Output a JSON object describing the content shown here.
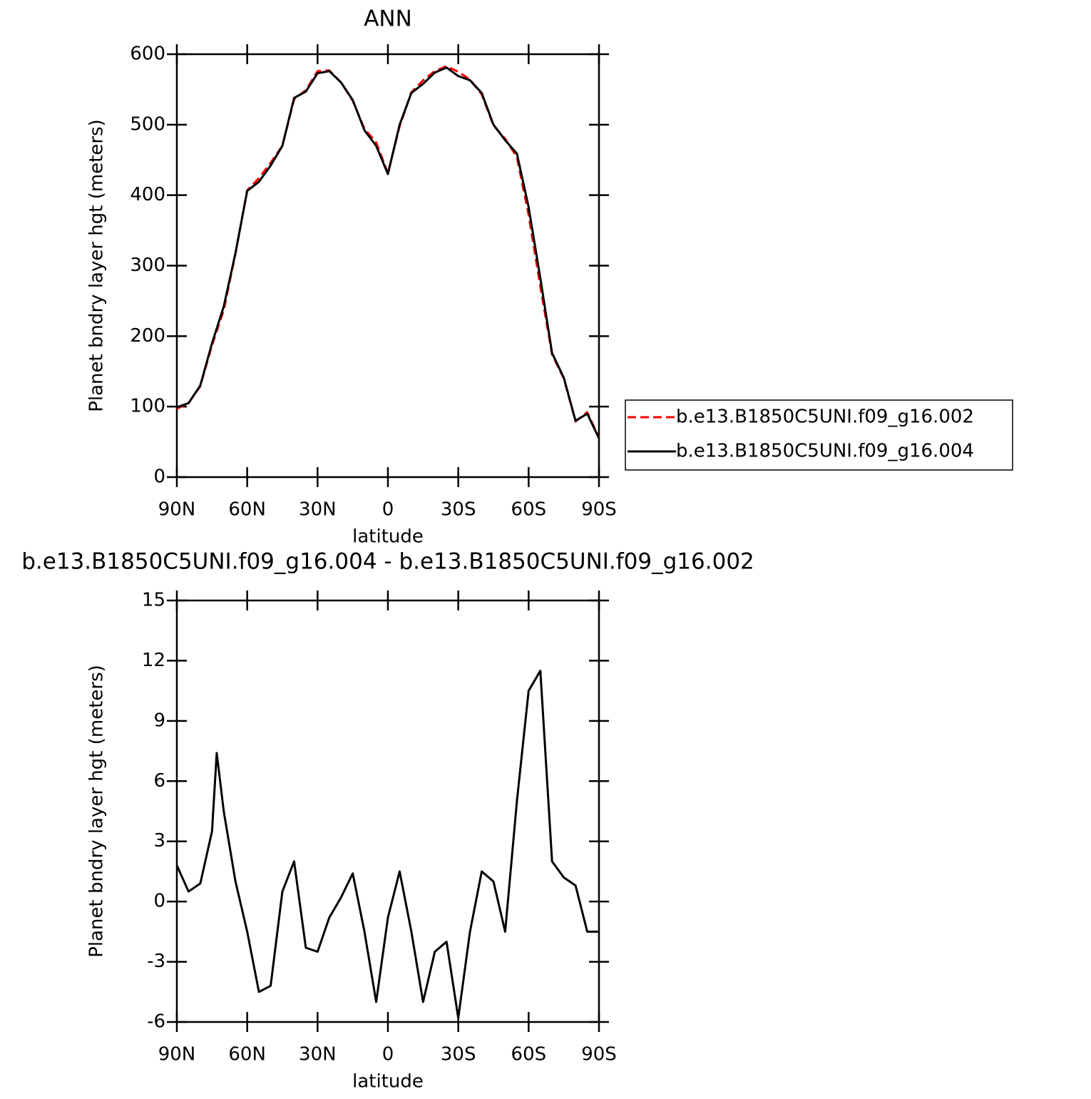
{
  "chart_data": [
    {
      "type": "line",
      "title": "ANN",
      "x_label": "latitude",
      "y_label": "Planet bndry layer hgt (meters)",
      "x": [
        90,
        85,
        80,
        75,
        70,
        65,
        60,
        55,
        50,
        45,
        40,
        35,
        30,
        25,
        20,
        15,
        10,
        5,
        0,
        -5,
        -10,
        -15,
        -20,
        -25,
        -30,
        -35,
        -40,
        -45,
        -50,
        -55,
        -60,
        -65,
        -70,
        -75,
        -80,
        -85,
        -90
      ],
      "xlim": [
        90,
        -90
      ],
      "xticks": [
        {
          "value": 90,
          "label": "90N"
        },
        {
          "value": 60,
          "label": "60N"
        },
        {
          "value": 30,
          "label": "30N"
        },
        0,
        {
          "value": -30,
          "label": "30S"
        },
        {
          "value": -60,
          "label": "60S"
        },
        {
          "value": -90,
          "label": "90S"
        }
      ],
      "ylim": [
        0,
        600
      ],
      "yticks": [
        0,
        100,
        200,
        300,
        400,
        500,
        600
      ],
      "legend": "right",
      "series": [
        {
          "name": "b.e13.B1850C5UNI.f09_g16.002",
          "color": "#ff0000",
          "dashed": true,
          "values": [
            97,
            105,
            129,
            187,
            237,
            317,
            407,
            424,
            446,
            470,
            536,
            549,
            576,
            577,
            560,
            534,
            494,
            475,
            431,
            498,
            546,
            563,
            576,
            583,
            575,
            564,
            543,
            499,
            480,
            454,
            372,
            270,
            174,
            140,
            79,
            92,
            56
          ]
        },
        {
          "name": "b.e13.B1850C5UNI.f09_g16.004",
          "color": "#000000",
          "dashed": false,
          "values": [
            99,
            105,
            130,
            190,
            242,
            318,
            406,
            419,
            442,
            470,
            538,
            547,
            573,
            576,
            560,
            535,
            492,
            470,
            430,
            500,
            545,
            558,
            574,
            581,
            569,
            563,
            545,
            500,
            478,
            459,
            383,
            282,
            176,
            141,
            80,
            90,
            55
          ]
        }
      ]
    },
    {
      "type": "line",
      "title": "b.e13.B1850C5UNI.f09_g16.004 - b.e13.B1850C5UNI.f09_g16.002",
      "x_label": "latitude",
      "y_label": "Planet bndry layer hgt (meters)",
      "x": [
        90,
        85,
        80,
        75,
        73,
        70,
        65,
        60,
        55,
        50,
        45,
        40,
        35,
        30,
        25,
        20,
        15,
        10,
        5,
        0,
        -5,
        -10,
        -15,
        -20,
        -25,
        -30,
        -35,
        -40,
        -45,
        -50,
        -55,
        -60,
        -65,
        -70,
        -75,
        -80,
        -85,
        -90
      ],
      "xlim": [
        90,
        -90
      ],
      "xticks": [
        {
          "value": 90,
          "label": "90N"
        },
        {
          "value": 60,
          "label": "60N"
        },
        {
          "value": 30,
          "label": "30N"
        },
        0,
        {
          "value": -30,
          "label": "30S"
        },
        {
          "value": -60,
          "label": "60S"
        },
        {
          "value": -90,
          "label": "90S"
        }
      ],
      "ylim": [
        -6,
        15
      ],
      "yticks": [
        -6,
        -3,
        0,
        3,
        6,
        9,
        12,
        15
      ],
      "series": [
        {
          "color": "#000000",
          "dashed": false,
          "values": [
            1.8,
            0.5,
            0.9,
            3.5,
            7.4,
            4.5,
            1.0,
            -1.5,
            -4.5,
            -4.2,
            0.5,
            2.0,
            -2.3,
            -2.5,
            -0.8,
            0.2,
            1.4,
            -1.5,
            -5.0,
            -0.8,
            1.5,
            -1.5,
            -5.0,
            -2.5,
            -2.0,
            -5.8,
            -1.5,
            1.5,
            1.0,
            -1.5,
            5.0,
            10.5,
            11.5,
            2.0,
            1.2,
            0.8,
            -1.5,
            -1.5
          ]
        }
      ]
    }
  ]
}
